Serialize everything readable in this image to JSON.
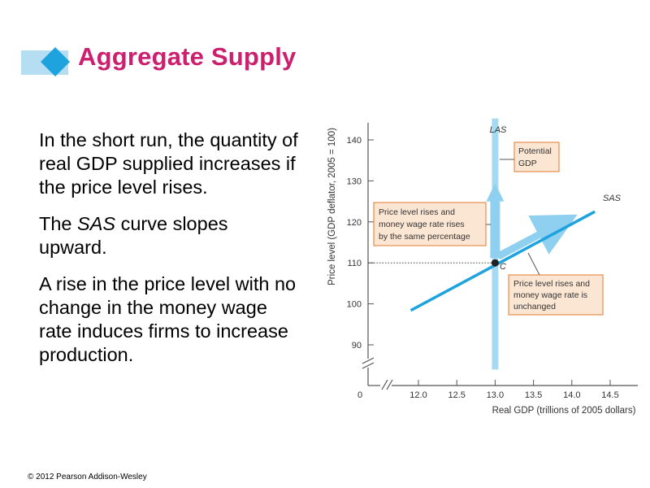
{
  "slide": {
    "title": "Aggregate Supply",
    "paragraphs": [
      {
        "before": "In the short run, the quantity of real GDP supplied increases if the price level rises.",
        "italic": "",
        "after": ""
      },
      {
        "before": "The ",
        "italic": "SAS",
        "after": " curve slopes upward."
      },
      {
        "before": "A rise in the price level with no change in the money wage rate induces firms to increase production.",
        "italic": "",
        "after": ""
      }
    ],
    "copyright": "© 2012 Pearson Addison-Wesley"
  },
  "chart_data": {
    "type": "line",
    "xlabel": "Real GDP (trillions of 2005 dollars)",
    "ylabel": "Price level (GDP deflator, 2005 = 100)",
    "origin_label": "0",
    "x_ticks": [
      12.0,
      12.5,
      13.0,
      13.5,
      14.0,
      14.5
    ],
    "x_tick_labels": [
      "12.0",
      "12.5",
      "13.0",
      "13.5",
      "14.0",
      "14.5"
    ],
    "y_ticks": [
      90,
      100,
      110,
      120,
      130,
      140
    ],
    "y_tick_labels": [
      "90",
      "100",
      "110",
      "120",
      "130",
      "140"
    ],
    "xlim": [
      11.6,
      14.8
    ],
    "ylim": [
      85,
      145
    ],
    "axis_break": true,
    "series": [
      {
        "name": "LAS",
        "points": [
          [
            13.0,
            84
          ],
          [
            13.0,
            145
          ]
        ],
        "color": "#a6d9f2"
      },
      {
        "name": "SAS",
        "points": [
          [
            11.9,
            98.4
          ],
          [
            14.3,
            122.5
          ]
        ],
        "color": "#1ea3de"
      }
    ],
    "point": {
      "label": "C",
      "x": 13.0,
      "y": 110
    },
    "reference_line": {
      "y": 110,
      "style": "dotted"
    },
    "annotations": [
      {
        "lines": [
          "Potential",
          "GDP"
        ]
      },
      {
        "lines": [
          "Price level rises and",
          "money wage rate rises",
          "by the same percentage"
        ]
      },
      {
        "lines": [
          "Price level rises and",
          "money wage rate is",
          "unchanged"
        ]
      }
    ],
    "colors": {
      "las": "#a6d9f2",
      "sas": "#1ea3de",
      "callout_fill": "#fbe6d3",
      "callout_border": "#e07a2f",
      "title": "#cc1f6e"
    }
  }
}
